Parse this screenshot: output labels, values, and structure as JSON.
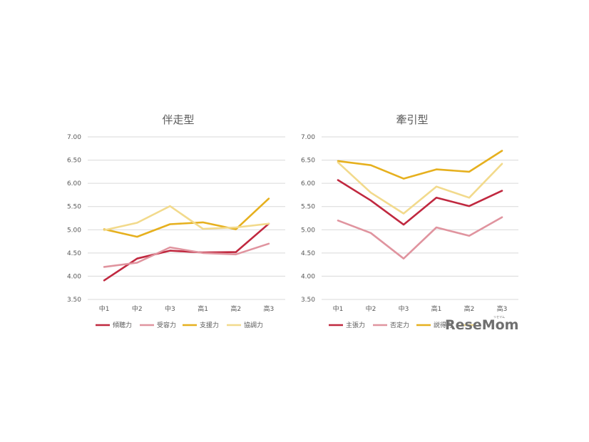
{
  "chart_data": [
    {
      "type": "line",
      "title": "伴走型",
      "categories": [
        "中1",
        "中2",
        "中3",
        "高1",
        "高2",
        "高3"
      ],
      "ylim": [
        3.5,
        7.0
      ],
      "yticks": [
        "3.50",
        "4.00",
        "4.50",
        "5.00",
        "5.50",
        "6.00",
        "6.50",
        "7.00"
      ],
      "grid": true,
      "legend_position": "bottom",
      "series": [
        {
          "name": "傾聴力",
          "color": "#c0283f",
          "values": [
            3.91,
            4.38,
            4.55,
            4.51,
            4.52,
            5.13
          ]
        },
        {
          "name": "受容力",
          "color": "#e0949f",
          "values": [
            4.2,
            4.29,
            4.62,
            4.5,
            4.47,
            4.7
          ]
        },
        {
          "name": "支援力",
          "color": "#e6b01e",
          "values": [
            5.01,
            4.85,
            5.12,
            5.16,
            5.01,
            5.67
          ]
        },
        {
          "name": "協調力",
          "color": "#f2da8c",
          "values": [
            4.99,
            5.15,
            5.51,
            5.02,
            5.05,
            5.13
          ]
        }
      ]
    },
    {
      "type": "line",
      "title": "牽引型",
      "categories": [
        "中1",
        "中2",
        "中3",
        "高1",
        "高2",
        "高3"
      ],
      "ylim": [
        3.5,
        7.0
      ],
      "yticks": [
        "3.50",
        "4.00",
        "4.50",
        "5.00",
        "5.50",
        "6.00",
        "6.50",
        "7.00"
      ],
      "grid": true,
      "legend_position": "bottom",
      "series": [
        {
          "name": "主張力",
          "color": "#c0283f",
          "values": [
            6.07,
            5.63,
            5.11,
            5.69,
            5.51,
            5.84
          ]
        },
        {
          "name": "否定力",
          "color": "#e0949f",
          "values": [
            5.2,
            4.93,
            4.38,
            5.05,
            4.87,
            5.27
          ]
        },
        {
          "name": "説得力",
          "color": "#e6b01e",
          "values": [
            6.48,
            6.39,
            6.1,
            6.3,
            6.25,
            6.7
          ]
        },
        {
          "name": "",
          "color": "#f2da8c",
          "values": [
            6.45,
            5.8,
            5.35,
            5.93,
            5.69,
            6.42
          ]
        }
      ]
    }
  ],
  "watermark": {
    "text": "ReseMom",
    "kana": "リセマム"
  }
}
